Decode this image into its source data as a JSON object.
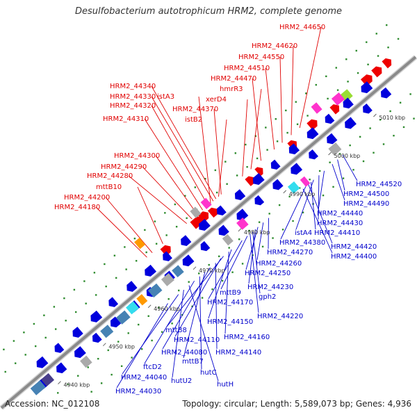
{
  "title": "Desulfobacterium autotrophicum HRM2, complete genome",
  "footer": {
    "accession": "Accession: NC_012108",
    "summary": "Topology: circular; Length: 5,589,073 bp; Genes: 4,936"
  },
  "axis": {
    "unit": "kbp",
    "ticks": [
      {
        "kbp": 4940,
        "label": "4940 kbp"
      },
      {
        "kbp": 4950,
        "label": "4950 kbp"
      },
      {
        "kbp": 4960,
        "label": "4960 kbp"
      },
      {
        "kbp": 4970,
        "label": "4970 kbp"
      },
      {
        "kbp": 4980,
        "label": "4980 kbp"
      },
      {
        "kbp": 4990,
        "label": "4990 kbp"
      },
      {
        "kbp": 5000,
        "label": "5000 kbp"
      },
      {
        "kbp": 5010,
        "label": "5010 kbp"
      }
    ]
  },
  "colors": {
    "backbone": "#8a8a8a",
    "reverse_gene": "#0000dd",
    "forward_gene": "#ee0000",
    "red_label": "#e00000",
    "blue_label": "#0000cc",
    "dot_green": "#2e8b2e",
    "magenta": "#ff33cc",
    "orange": "#ff9900",
    "cyan": "#33ddee",
    "steel": "#4682b4",
    "slate": "#483d8b",
    "grey": "#aaaaaa",
    "lime": "#99dd33"
  },
  "top_labels": [
    "HRM2_44650",
    "HRM2_44620",
    "HRM2_44550",
    "HRM2_44510",
    "HRM2_44470",
    "hmrR3",
    "xerD4",
    "HRM2_44340",
    "HRM2_44330",
    "istA3",
    "HRM2_44320",
    "HRM2_44370",
    "istB2",
    "HRM2_44310",
    "HRM2_44300",
    "HRM2_44290",
    "HRM2_44280",
    "mttB10",
    "HRM2_44200",
    "HRM2_44180"
  ],
  "bottom_labels": [
    "HRM2_44520",
    "HRM2_44500",
    "HRM2_44490",
    "HRM2_44440",
    "HRM2_44430",
    "istA4",
    "HRM2_44410",
    "HRM2_44380",
    "HRM2_44420",
    "HRM2_44400",
    "HRM2_44270",
    "HRM2_44260",
    "HRM2_44250",
    "HRM2_44230",
    "mttB9",
    "gph2",
    "HRM2_44170",
    "HRM2_44220",
    "HRM2_44150",
    "mttB8",
    "HRM2_44160",
    "HRM2_44110",
    "HRM2_44080",
    "HRM2_44140",
    "mttB7",
    "ftcD2",
    "hutC",
    "HRM2_44040",
    "hutU2",
    "hutH",
    "HRM2_44030"
  ]
}
